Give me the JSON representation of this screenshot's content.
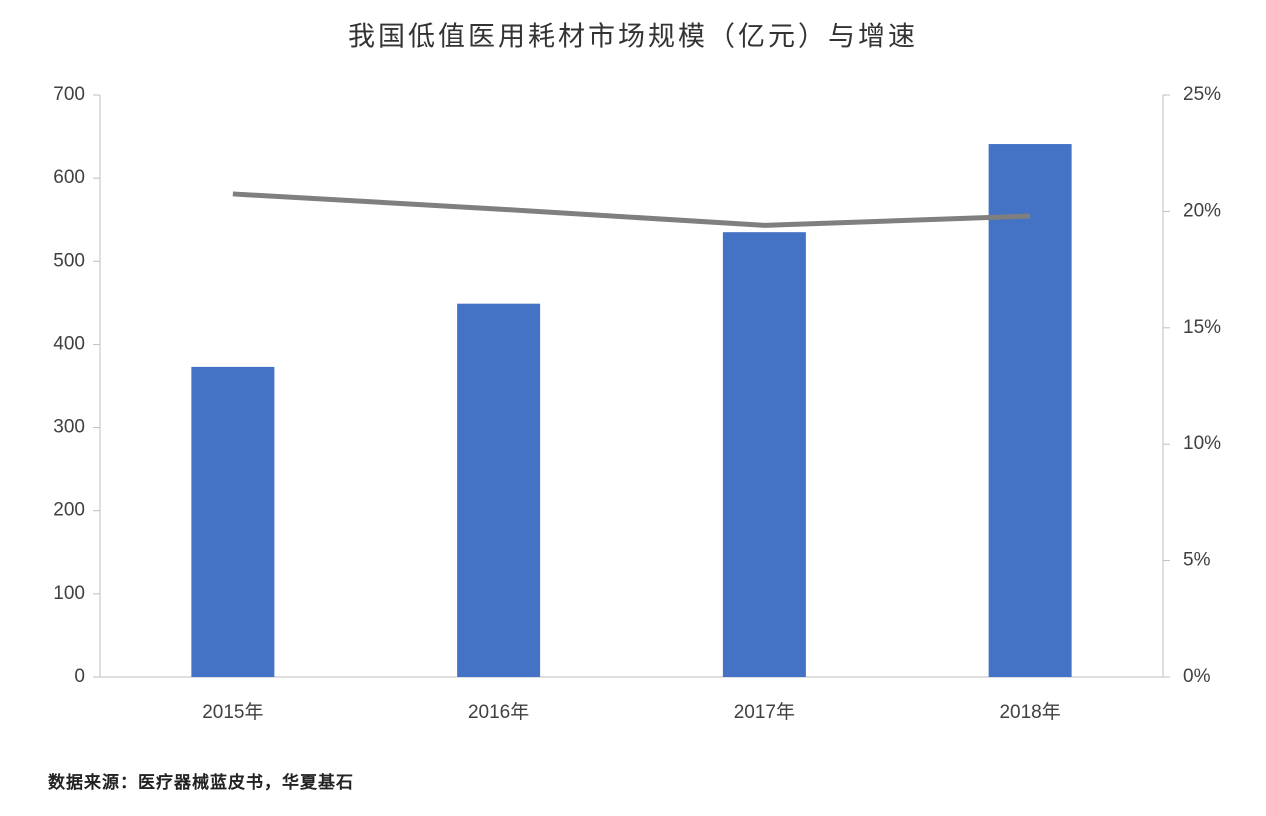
{
  "chart_data": {
    "type": "bar",
    "title": "我国低值医用耗材市场规模（亿元）与增速",
    "source": "数据来源：医疗器械蓝皮书，华夏基石",
    "categories": [
      "2015年",
      "2016年",
      "2017年",
      "2018年"
    ],
    "series": [
      {
        "type": "bar",
        "color": "#4472c4",
        "values": [
          373,
          449,
          535,
          641
        ]
      },
      {
        "type": "line",
        "axis": "y2",
        "color": "#7f7f7f",
        "values": [
          20.75,
          20.1,
          19.4,
          19.8
        ]
      }
    ],
    "ylim": [
      0,
      700
    ],
    "yticks": [
      0,
      100,
      200,
      300,
      400,
      500,
      600,
      700
    ],
    "y2lim": [
      0,
      25
    ],
    "y2ticks": [
      {
        "value": 0,
        "label": "0%"
      },
      {
        "value": 5,
        "label": "5%"
      },
      {
        "value": 10,
        "label": "10%"
      },
      {
        "value": 15,
        "label": "15%"
      },
      {
        "value": 20,
        "label": "20%"
      },
      {
        "value": 25,
        "label": "25%"
      }
    ],
    "grid": false
  }
}
